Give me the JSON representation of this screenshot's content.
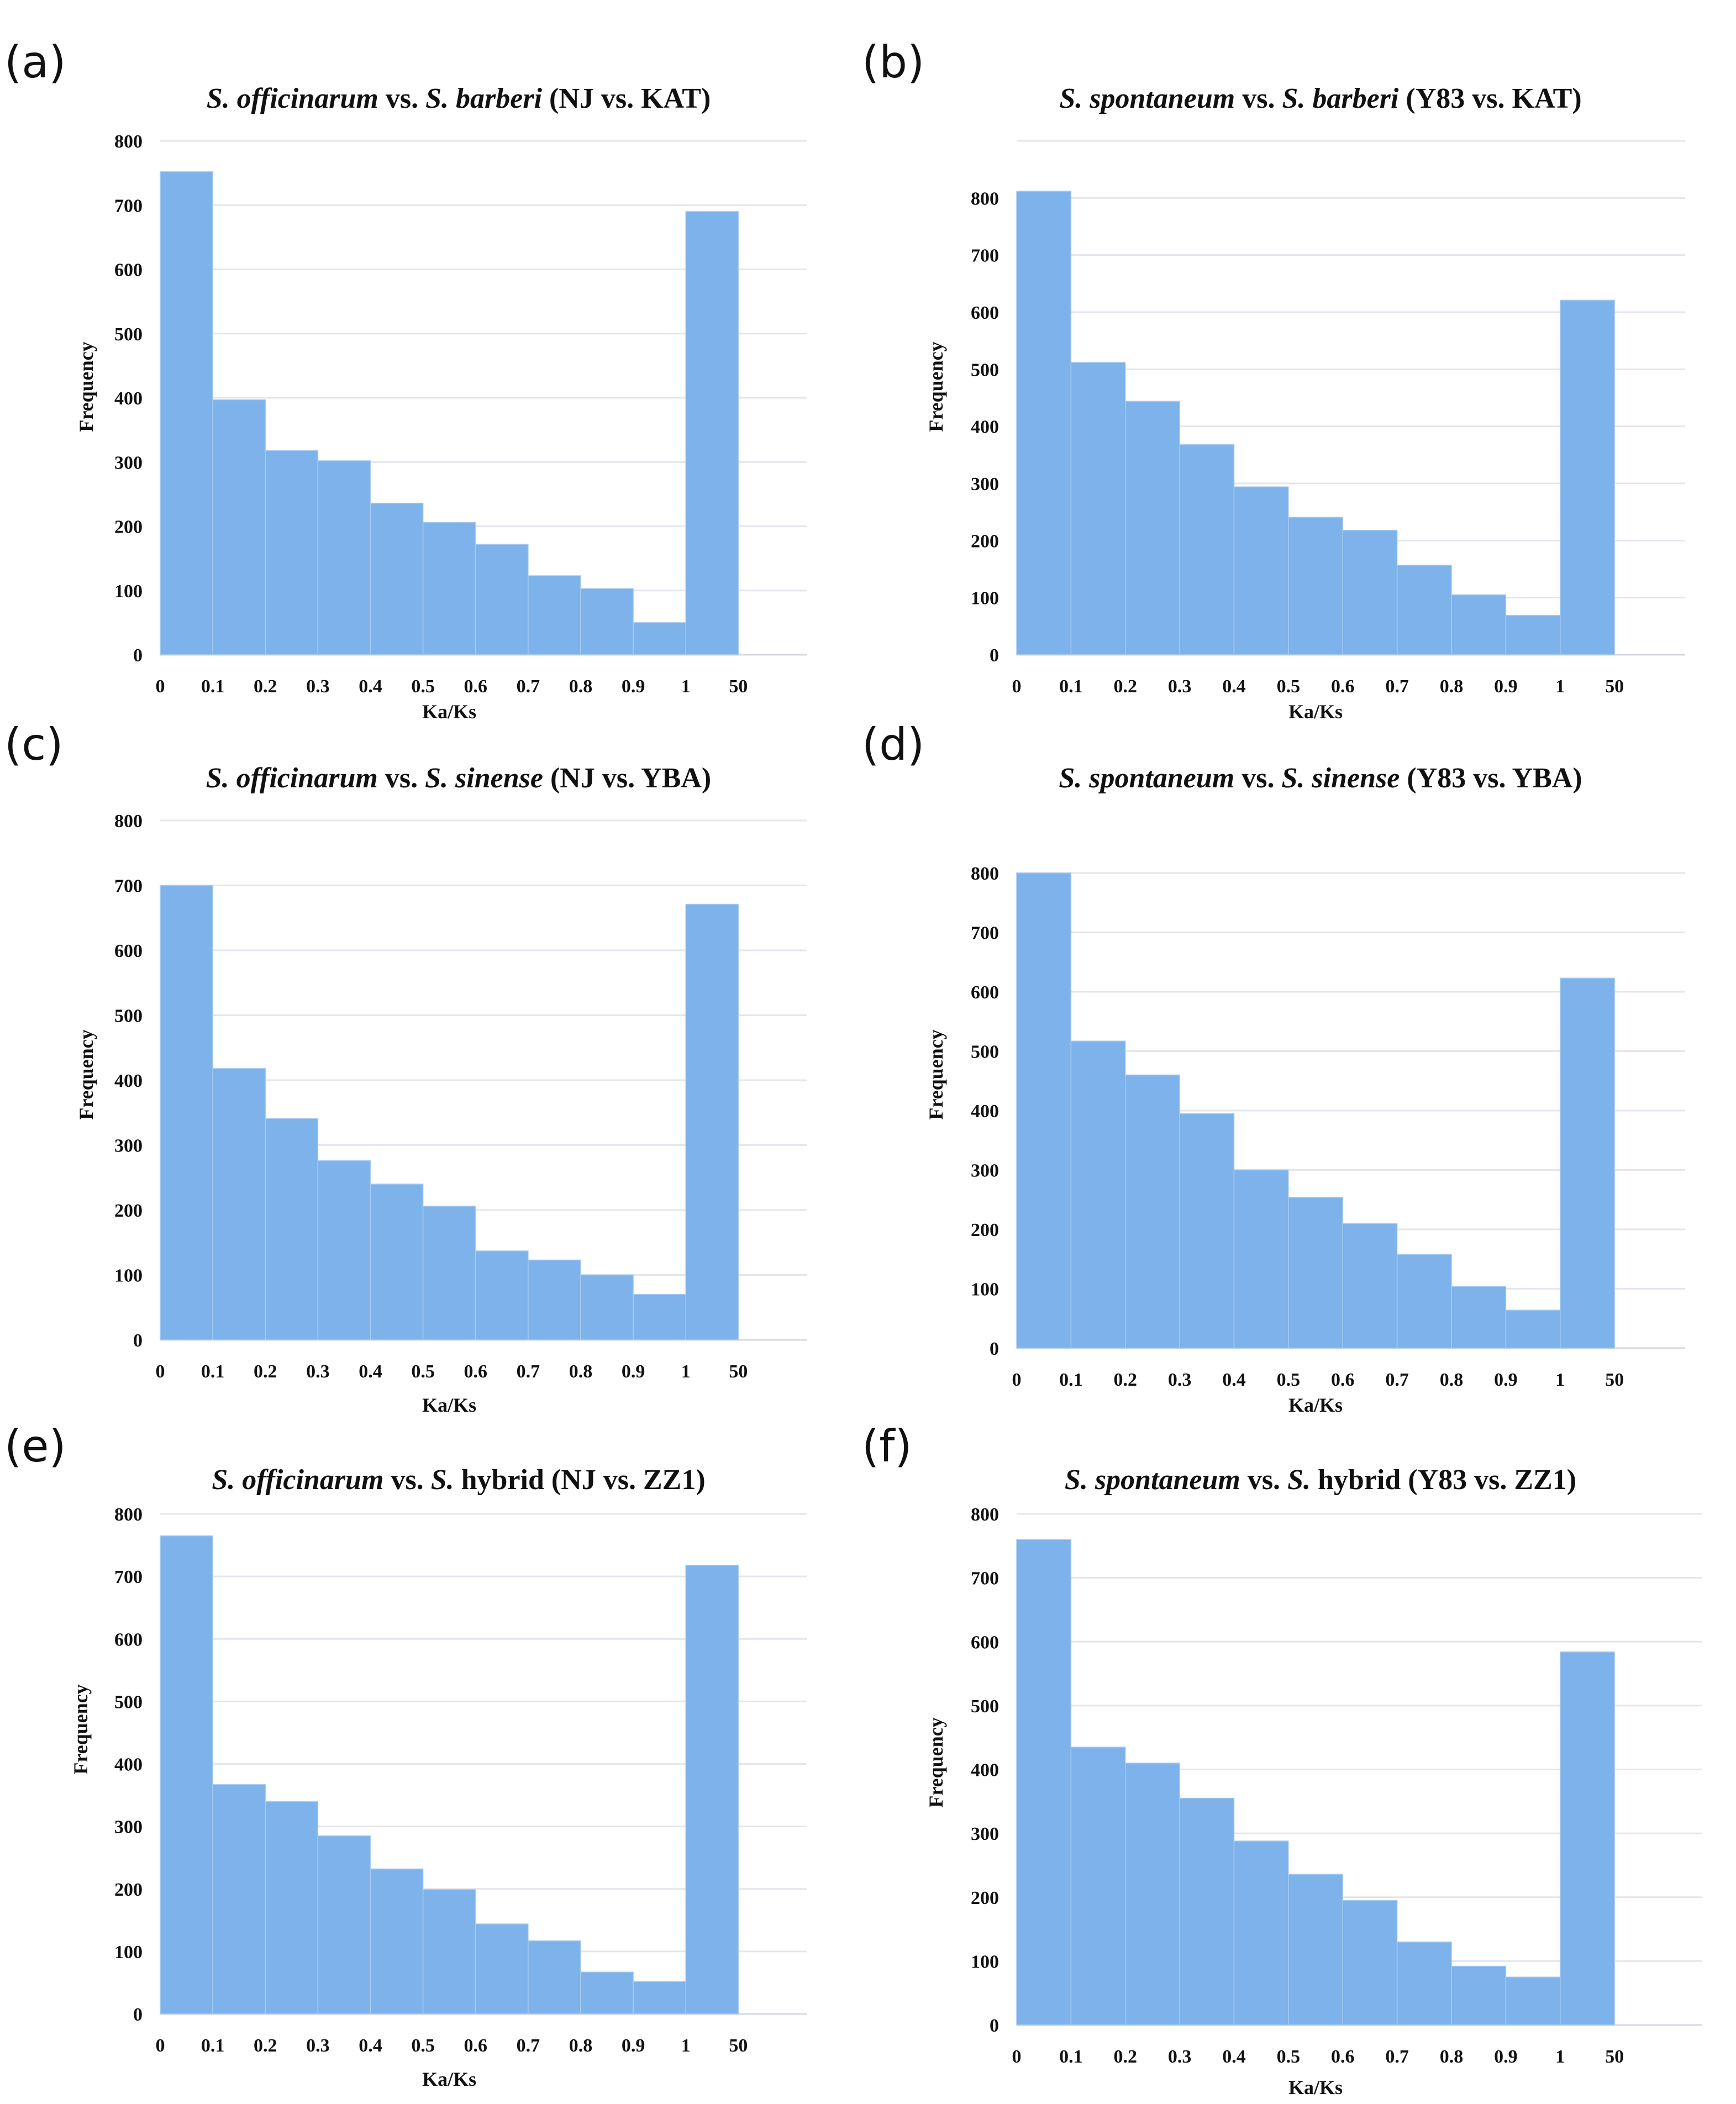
{
  "figure": {
    "panels": [
      {
        "label": "(a)",
        "title_parts": [
          {
            "text": "S. officinarum",
            "italic": true
          },
          {
            "text": " vs. ",
            "italic": false
          },
          {
            "text": "S. barberi",
            "italic": true
          },
          {
            "text": " (NJ vs. KAT)",
            "italic": false
          }
        ]
      },
      {
        "label": "(b)",
        "title_parts": [
          {
            "text": "S. spontaneum",
            "italic": true
          },
          {
            "text": " vs. ",
            "italic": false
          },
          {
            "text": "S. barberi",
            "italic": true
          },
          {
            "text": " (Y83 vs. KAT)",
            "italic": false
          }
        ]
      },
      {
        "label": "(c)",
        "title_parts": [
          {
            "text": "S. officinarum",
            "italic": true
          },
          {
            "text": " vs. ",
            "italic": false
          },
          {
            "text": "S. sinense",
            "italic": true
          },
          {
            "text": " (NJ vs. YBA)",
            "italic": false
          }
        ]
      },
      {
        "label": "(d)",
        "title_parts": [
          {
            "text": "S. spontaneum",
            "italic": true
          },
          {
            "text": " vs. ",
            "italic": false
          },
          {
            "text": "S. sinense",
            "italic": true
          },
          {
            "text": " (Y83 vs. YBA)",
            "italic": false
          }
        ]
      },
      {
        "label": "(e)",
        "title_parts": [
          {
            "text": "S. officinarum",
            "italic": true
          },
          {
            "text": " vs. ",
            "italic": false
          },
          {
            "text": "S.",
            "italic": true
          },
          {
            "text": " hybrid (NJ vs. ZZ1)",
            "italic": false
          }
        ]
      },
      {
        "label": "(f)",
        "title_parts": [
          {
            "text": "S. spontaneum",
            "italic": true
          },
          {
            "text": " vs. ",
            "italic": false
          },
          {
            "text": "S.",
            "italic": true
          },
          {
            "text": " hybrid (Y83 vs. ZZ1)",
            "italic": false
          }
        ]
      }
    ],
    "bar_color": "#7db3ea"
  },
  "chart_data": [
    {
      "type": "bar",
      "title": "S. officinarum vs. S. barberi (NJ vs. KAT)",
      "xlabel": "Ka/Ks",
      "ylabel": "Frequency",
      "x_ticks": [
        "0",
        "0.1",
        "0.2",
        "0.3",
        "0.4",
        "0.5",
        "0.6",
        "0.7",
        "0.8",
        "0.9",
        "1",
        "50"
      ],
      "y_ticks": [
        "0",
        "100",
        "200",
        "300",
        "400",
        "500",
        "600",
        "700",
        "800"
      ],
      "ylim": [
        0,
        800
      ],
      "grid": true,
      "categories": [
        "0-0.1",
        "0.1-0.2",
        "0.2-0.3",
        "0.3-0.4",
        "0.4-0.5",
        "0.5-0.6",
        "0.6-0.7",
        "0.7-0.8",
        "0.8-0.9",
        "0.9-1",
        "1-50"
      ],
      "values": [
        752,
        397,
        318,
        302,
        236,
        206,
        172,
        123,
        103,
        50,
        690
      ]
    },
    {
      "type": "bar",
      "title": "S. spontaneum vs. S. barberi (Y83 vs. KAT)",
      "xlabel": "Ka/Ks",
      "ylabel": "Frequency",
      "x_ticks": [
        "0",
        "0.1",
        "0.2",
        "0.3",
        "0.4",
        "0.5",
        "0.6",
        "0.7",
        "0.8",
        "0.9",
        "1",
        "50"
      ],
      "y_ticks": [
        "0",
        "100",
        "200",
        "300",
        "400",
        "500",
        "600",
        "700",
        "800"
      ],
      "ylim": [
        0,
        900
      ],
      "grid": true,
      "categories": [
        "0-0.1",
        "0.1-0.2",
        "0.2-0.3",
        "0.3-0.4",
        "0.4-0.5",
        "0.5-0.6",
        "0.6-0.7",
        "0.7-0.8",
        "0.8-0.9",
        "0.9-1",
        "1-50"
      ],
      "values": [
        812,
        512,
        444,
        368,
        294,
        241,
        218,
        157,
        105,
        69,
        621
      ]
    },
    {
      "type": "bar",
      "title": "S. officinarum vs. S. sinense (NJ vs. YBA)",
      "xlabel": "Ka/Ks",
      "ylabel": "Frequency",
      "x_ticks": [
        "0",
        "0.1",
        "0.2",
        "0.3",
        "0.4",
        "0.5",
        "0.6",
        "0.7",
        "0.8",
        "0.9",
        "1",
        "50"
      ],
      "y_ticks": [
        "0",
        "100",
        "200",
        "300",
        "400",
        "500",
        "600",
        "700",
        "800"
      ],
      "ylim": [
        0,
        800
      ],
      "grid": true,
      "categories": [
        "0-0.1",
        "0.1-0.2",
        "0.2-0.3",
        "0.3-0.4",
        "0.4-0.5",
        "0.5-0.6",
        "0.6-0.7",
        "0.7-0.8",
        "0.8-0.9",
        "0.9-1",
        "1-50"
      ],
      "values": [
        700,
        418,
        341,
        276,
        240,
        206,
        137,
        123,
        100,
        70,
        671
      ]
    },
    {
      "type": "bar",
      "title": "S. spontaneum vs. S. sinense (Y83 vs. YBA)",
      "xlabel": "Ka/Ks",
      "ylabel": "Frequency",
      "x_ticks": [
        "0",
        "0.1",
        "0.2",
        "0.3",
        "0.4",
        "0.5",
        "0.6",
        "0.7",
        "0.8",
        "0.9",
        "1",
        "50"
      ],
      "y_ticks": [
        "0",
        "100",
        "200",
        "300",
        "400",
        "500",
        "600",
        "700",
        "800"
      ],
      "ylim": [
        0,
        800
      ],
      "grid": true,
      "categories": [
        "0-0.1",
        "0.1-0.2",
        "0.2-0.3",
        "0.3-0.4",
        "0.4-0.5",
        "0.5-0.6",
        "0.6-0.7",
        "0.7-0.8",
        "0.8-0.9",
        "0.9-1",
        "1-50"
      ],
      "values": [
        800,
        517,
        460,
        395,
        300,
        254,
        210,
        158,
        104,
        64,
        623
      ]
    },
    {
      "type": "bar",
      "title": "S. officinarum vs. S. hybrid (NJ vs. ZZ1)",
      "xlabel": "Ka/Ks",
      "ylabel": "Frequency",
      "x_ticks": [
        "0",
        "0.1",
        "0.2",
        "0.3",
        "0.4",
        "0.5",
        "0.6",
        "0.7",
        "0.8",
        "0.9",
        "1",
        "50"
      ],
      "y_ticks": [
        "0",
        "100",
        "200",
        "300",
        "400",
        "500",
        "600",
        "700",
        "800"
      ],
      "ylim": [
        0,
        800
      ],
      "grid": true,
      "categories": [
        "0-0.1",
        "0.1-0.2",
        "0.2-0.3",
        "0.3-0.4",
        "0.4-0.5",
        "0.5-0.6",
        "0.6-0.7",
        "0.7-0.8",
        "0.8-0.9",
        "0.9-1",
        "1-50"
      ],
      "values": [
        765,
        367,
        340,
        285,
        232,
        199,
        144,
        117,
        67,
        52,
        718
      ]
    },
    {
      "type": "bar",
      "title": "S. spontaneum vs. S. hybrid (Y83 vs. ZZ1)",
      "xlabel": "Ka/Ks",
      "ylabel": "Frequency",
      "x_ticks": [
        "0",
        "0.1",
        "0.2",
        "0.3",
        "0.4",
        "0.5",
        "0.6",
        "0.7",
        "0.8",
        "0.9",
        "1",
        "50"
      ],
      "y_ticks": [
        "0",
        "100",
        "200",
        "300",
        "400",
        "500",
        "600",
        "700",
        "800"
      ],
      "ylim": [
        0,
        800
      ],
      "grid": true,
      "categories": [
        "0-0.1",
        "0.1-0.2",
        "0.2-0.3",
        "0.3-0.4",
        "0.4-0.5",
        "0.5-0.6",
        "0.6-0.7",
        "0.7-0.8",
        "0.8-0.9",
        "0.9-1",
        "1-50"
      ],
      "values": [
        760,
        435,
        410,
        355,
        288,
        236,
        195,
        130,
        92,
        75,
        584
      ]
    }
  ]
}
